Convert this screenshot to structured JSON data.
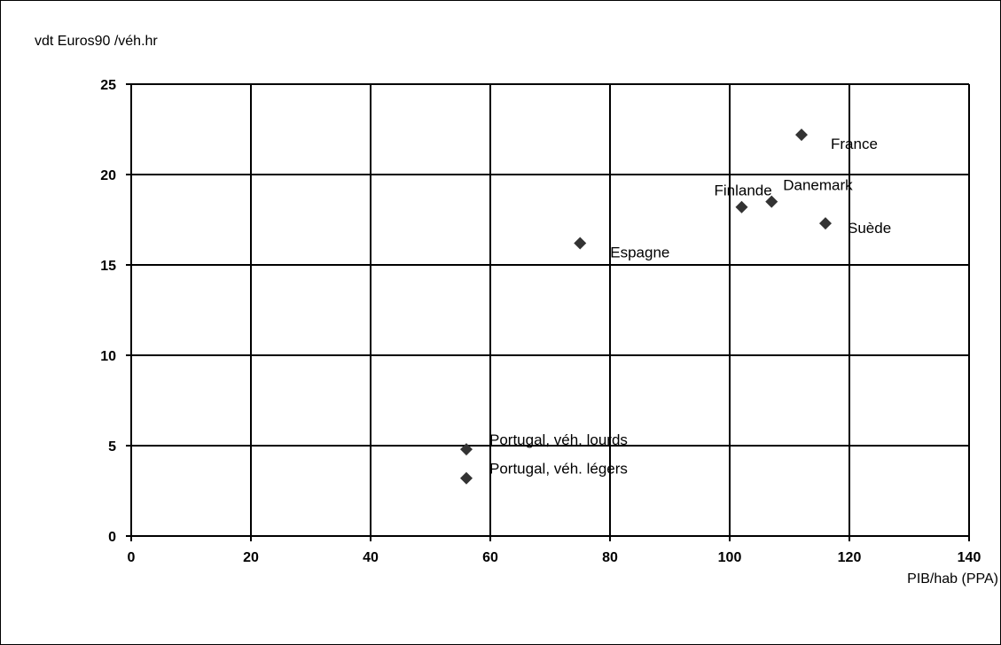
{
  "chart_data": {
    "type": "scatter",
    "title": "",
    "xlabel": "PIB/hab (PPA)",
    "ylabel": "vdt Euros90 /véh.hr",
    "xlim": [
      0,
      140
    ],
    "ylim": [
      0,
      25
    ],
    "x_ticks": [
      "0",
      "20",
      "40",
      "60",
      "80",
      "100",
      "120",
      "140"
    ],
    "y_ticks": [
      "0",
      "5",
      "10",
      "15",
      "20",
      "25"
    ],
    "grid": true,
    "legend": "none",
    "marker": "diamond",
    "marker_color": "#333333",
    "points": [
      {
        "label": "France",
        "x": 112,
        "y": 22.2
      },
      {
        "label": "Finlande",
        "x": 102,
        "y": 18.2
      },
      {
        "label": "Danemark",
        "x": 107,
        "y": 18.5
      },
      {
        "label": "Suède",
        "x": 116,
        "y": 17.3
      },
      {
        "label": "Espagne",
        "x": 75,
        "y": 16.2
      },
      {
        "label": "Portugal, véh. lourds",
        "x": 56,
        "y": 4.8
      },
      {
        "label": "Portugal, véh. légers",
        "x": 56,
        "y": 3.2
      }
    ]
  }
}
